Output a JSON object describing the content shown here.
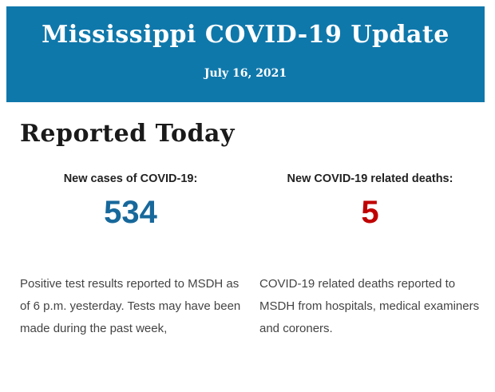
{
  "page": {
    "background_color": "#ffffff",
    "heading": "Reported Today",
    "heading_color": "#1a1a1a"
  },
  "banner": {
    "title": "Mississippi COVID-19 Update",
    "date": "July 16, 2021",
    "background_color": "#0f78ab",
    "text_color": "#ffffff"
  },
  "report": {
    "label_color": "#222222",
    "description_color": "#444444",
    "stats": [
      {
        "label": "New cases of COVID-19:",
        "value": "534",
        "value_color": "#17689b",
        "description": "Positive test results reported to MSDH as\nof 6 p.m. yesterday. Tests may have been\nmade during the past week,"
      },
      {
        "label": "New COVID-19 related deaths:",
        "value": "5",
        "value_color": "#c00000",
        "description": "COVID-19 related deaths reported to\nMSDH from hospitals, medical examiners\nand coroners."
      }
    ]
  }
}
